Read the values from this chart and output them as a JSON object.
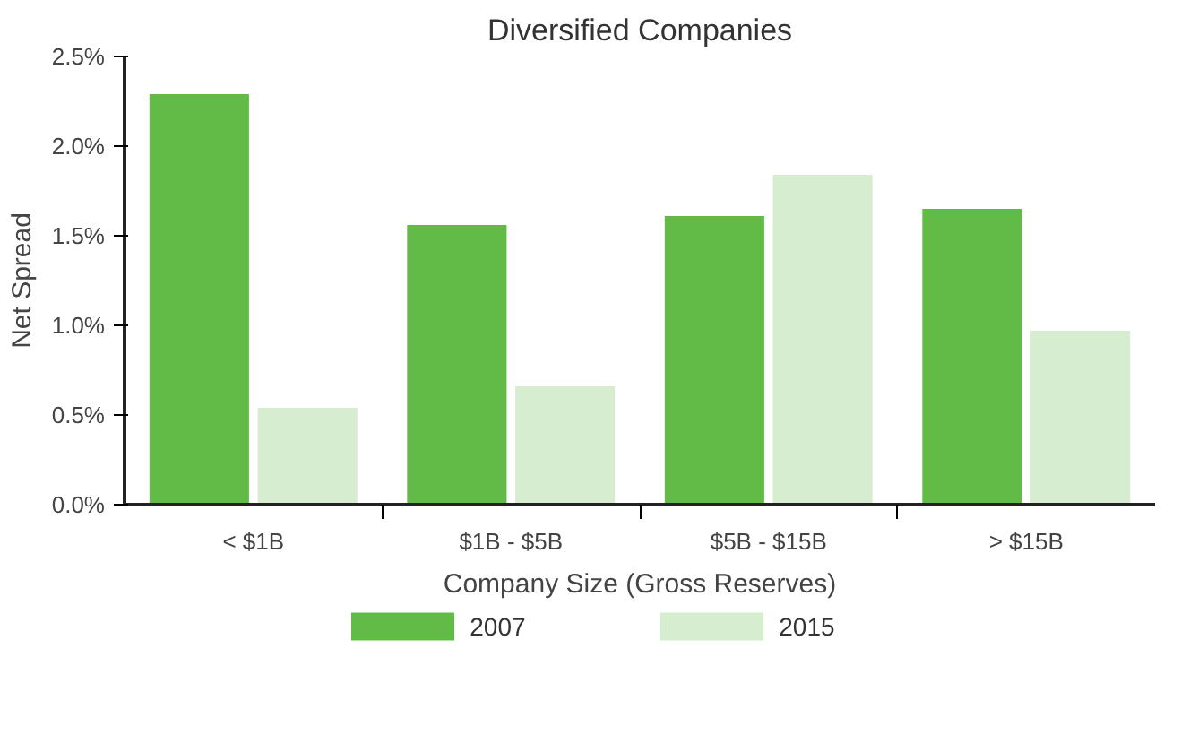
{
  "chart_data": {
    "type": "bar",
    "title": "Diversified Companies",
    "xlabel": "Company Size (Gross Reserves)",
    "ylabel": "Net Spread",
    "categories": [
      "< $1B",
      "$1B - $5B",
      "$5B - $15B",
      "> $15B"
    ],
    "series": [
      {
        "name": "2007",
        "color": "#62bb46",
        "values": [
          2.29,
          1.56,
          1.61,
          1.65
        ]
      },
      {
        "name": "2015",
        "color": "#d6edd0",
        "values": [
          0.54,
          0.66,
          1.84,
          0.97
        ]
      }
    ],
    "ylim": [
      0,
      2.5
    ],
    "yticks": [
      {
        "value": 0,
        "label": "0.0%"
      },
      {
        "value": 0.5,
        "label": "0.5%"
      },
      {
        "value": 1,
        "label": "1.0%"
      },
      {
        "value": 1.5,
        "label": "1.5%"
      },
      {
        "value": 2,
        "label": "2.0%"
      },
      {
        "value": 2.5,
        "label": "2.5%"
      }
    ],
    "grid": false,
    "legend": "bottom"
  }
}
